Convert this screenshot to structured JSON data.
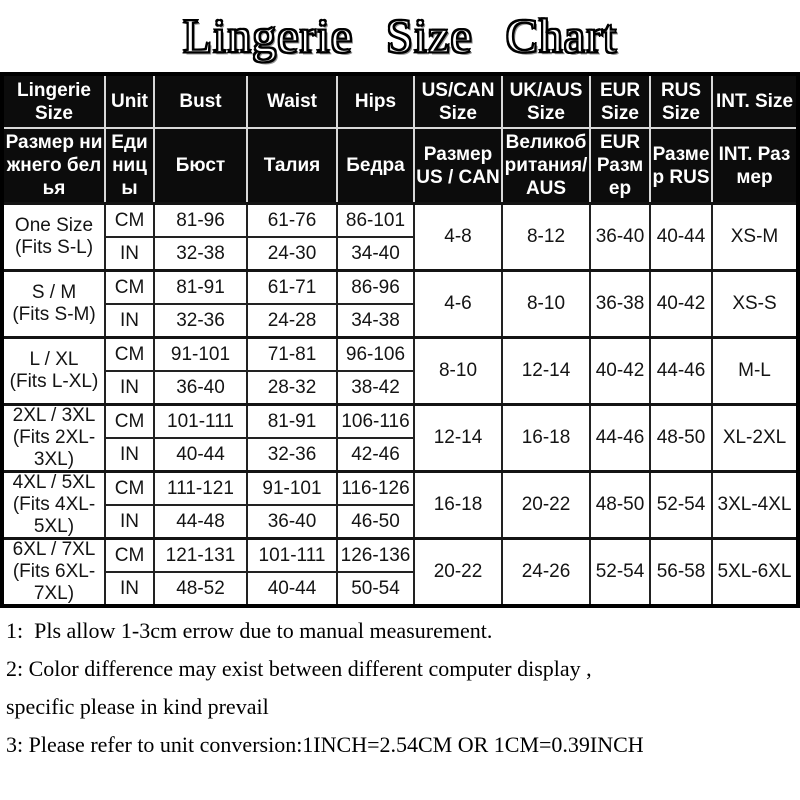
{
  "title": "Lingerie Size Chart",
  "colors": {
    "header_bg": "#0c0c0c",
    "header_text": "#ffffff",
    "header_grid": "#d9d9d9",
    "data_grid": "#222222",
    "outer_border": "#000000",
    "page_bg": "#ffffff"
  },
  "table": {
    "columns_en": [
      "Lingerie Size",
      "Unit",
      "Bust",
      "Waist",
      "Hips",
      "US/CAN Size",
      "UK/AUS Size",
      "EUR Size",
      "RUS Size",
      "INT. Size"
    ],
    "columns_ru": [
      "Размер нижнего белья",
      "Единицы",
      "Бюст",
      "Талия",
      "Бедра",
      "Размер US / CAN",
      "Великобритания/AUS",
      "EUR Размер",
      "Размер RUS",
      "INT. Размер"
    ],
    "rows": [
      {
        "size": "One Size",
        "fits": "(Fits S-L)",
        "cm": {
          "label": "CM",
          "bust": "81-96",
          "waist": "61-76",
          "hips": "86-101"
        },
        "inch": {
          "label": "IN",
          "bust": "32-38",
          "waist": "24-30",
          "hips": "34-40"
        },
        "us_can": "4-8",
        "uk_aus": "8-12",
        "eur": "36-40",
        "rus": "40-44",
        "int": "XS-M"
      },
      {
        "size": "S / M",
        "fits": "(Fits S-M)",
        "cm": {
          "label": "CM",
          "bust": "81-91",
          "waist": "61-71",
          "hips": "86-96"
        },
        "inch": {
          "label": "IN",
          "bust": "32-36",
          "waist": "24-28",
          "hips": "34-38"
        },
        "us_can": "4-6",
        "uk_aus": "8-10",
        "eur": "36-38",
        "rus": "40-42",
        "int": "XS-S"
      },
      {
        "size": "L / XL",
        "fits": "(Fits L-XL)",
        "cm": {
          "label": "CM",
          "bust": "91-101",
          "waist": "71-81",
          "hips": "96-106"
        },
        "inch": {
          "label": "IN",
          "bust": "36-40",
          "waist": "28-32",
          "hips": "38-42"
        },
        "us_can": "8-10",
        "uk_aus": "12-14",
        "eur": "40-42",
        "rus": "44-46",
        "int": "M-L"
      },
      {
        "size": "2XL / 3XL",
        "fits": "(Fits 2XL-3XL)",
        "cm": {
          "label": "CM",
          "bust": "101-111",
          "waist": "81-91",
          "hips": "106-116"
        },
        "inch": {
          "label": "IN",
          "bust": "40-44",
          "waist": "32-36",
          "hips": "42-46"
        },
        "us_can": "12-14",
        "uk_aus": "16-18",
        "eur": "44-46",
        "rus": "48-50",
        "int": "XL-2XL"
      },
      {
        "size": "4XL / 5XL",
        "fits": "(Fits 4XL-5XL)",
        "cm": {
          "label": "CM",
          "bust": "111-121",
          "waist": "91-101",
          "hips": "116-126"
        },
        "inch": {
          "label": "IN",
          "bust": "44-48",
          "waist": "36-40",
          "hips": "46-50"
        },
        "us_can": "16-18",
        "uk_aus": "20-22",
        "eur": "48-50",
        "rus": "52-54",
        "int": "3XL-4XL"
      },
      {
        "size": "6XL / 7XL",
        "fits": "(Fits 6XL-7XL)",
        "cm": {
          "label": "CM",
          "bust": "121-131",
          "waist": "101-111",
          "hips": "126-136"
        },
        "inch": {
          "label": "IN",
          "bust": "48-52",
          "waist": "40-44",
          "hips": "50-54"
        },
        "us_can": "20-22",
        "uk_aus": "24-26",
        "eur": "52-54",
        "rus": "56-58",
        "int": "5XL-6XL"
      }
    ]
  },
  "notes": [
    "1:  Pls allow 1-3cm errow due to manual measurement.",
    "2: Color difference may exist between different computer display ,",
    "specific please in kind prevail",
    "3: Please refer to unit conversion:1INCH=2.54CM OR 1CM=0.39INCH"
  ]
}
